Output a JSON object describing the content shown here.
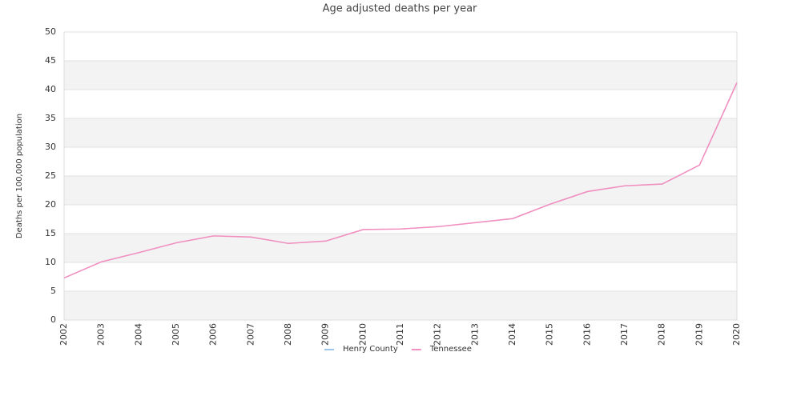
{
  "chart_data": {
    "type": "line",
    "title": "Age adjusted deaths per year",
    "y_label": "Deaths per 100,000 population",
    "categories": [
      "2002",
      "2003",
      "2004",
      "2005",
      "2006",
      "2007",
      "2008",
      "2009",
      "2010",
      "2011",
      "2012",
      "2013",
      "2014",
      "2015",
      "2016",
      "2017",
      "2018",
      "2019",
      "2020"
    ],
    "series": [
      {
        "name": "Henry County",
        "color": "#9ec5ea",
        "values": [
          null,
          null,
          null,
          null,
          null,
          null,
          null,
          null,
          null,
          null,
          null,
          null,
          null,
          null,
          null,
          null,
          null,
          null,
          null
        ]
      },
      {
        "name": "Tennessee",
        "color": "#f08fc0",
        "values": [
          7.3,
          10.1,
          11.7,
          13.4,
          14.6,
          14.4,
          13.3,
          13.7,
          15.7,
          15.8,
          16.2,
          16.9,
          17.6,
          20.1,
          22.3,
          23.3,
          23.6,
          26.9,
          41.2
        ]
      }
    ],
    "ylim": [
      0,
      50
    ],
    "yticks": [
      0,
      5,
      10,
      15,
      20,
      25,
      30,
      35,
      40,
      45,
      50
    ],
    "grid": true,
    "legend": "bottom"
  }
}
